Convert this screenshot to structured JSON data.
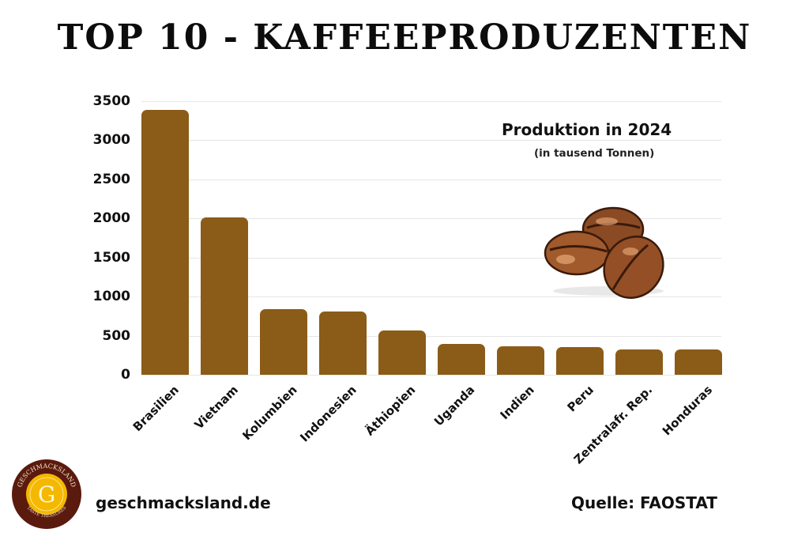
{
  "header": {
    "title": "TOP 10 - KAFFEEPRODUZENTEN"
  },
  "legend": {
    "title": "Produktion in 2024",
    "subtitle": "(in tausend Tonnen)"
  },
  "footer": {
    "website": "geschmacksland.de",
    "source": "Quelle: FAOSTAT",
    "logo_text": "GESCHMACKSLAND",
    "logo_tagline": "TASTE TREASURES",
    "logo_letter": "G"
  },
  "colors": {
    "bar": "#8b5c18",
    "grid": "#e6e6e6",
    "logo_ring": "#5a1a0e",
    "logo_center": "#f5b800"
  },
  "axis": {
    "yticks": [
      "3500",
      "3000",
      "2500",
      "2000",
      "1500",
      "1000",
      "500",
      "0"
    ]
  },
  "chart_data": {
    "type": "bar",
    "title": "TOP 10 - KAFFEEPRODUZENTEN",
    "subtitle": "Produktion in 2024 (in tausend Tonnen)",
    "categories": [
      "Brasilien",
      "Vietnam",
      "Kolumbien",
      "Indonesien",
      "Äthiopien",
      "Uganda",
      "Indien",
      "Peru",
      "Zentralafr. Rep.",
      "Honduras"
    ],
    "values": [
      3390,
      2010,
      835,
      805,
      565,
      390,
      360,
      355,
      320,
      320
    ],
    "xlabel": "",
    "ylabel": "",
    "ylim": [
      0,
      3500
    ],
    "yticks": [
      0,
      500,
      1000,
      1500,
      2000,
      2500,
      3000,
      3500
    ],
    "grid": true,
    "legend_position": "top-right",
    "source": "FAOSTAT"
  }
}
